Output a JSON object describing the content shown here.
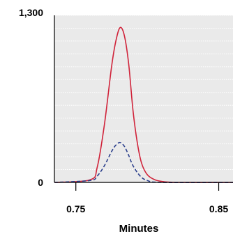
{
  "chart_data": {
    "type": "line",
    "title": "",
    "xlabel": "Minutes",
    "ylabel": "",
    "xlim": [
      0.735,
      0.86
    ],
    "ylim": [
      0,
      1300
    ],
    "x_ticks": [
      {
        "value": 0.75,
        "label": "0.75"
      },
      {
        "value": 0.85,
        "label": "0.85"
      }
    ],
    "y_ticks": [
      {
        "value": 0,
        "label": "0"
      },
      {
        "value": 1300,
        "label": "1,300"
      }
    ],
    "grid": true,
    "colors": {
      "plot_background": "#eaeaea",
      "grid": "#ffffff",
      "solid_series": "#d0233a",
      "dashed_series": "#2b3f8c",
      "axis": "#000000"
    },
    "series": [
      {
        "style": "solid",
        "x": [
          0.735,
          0.76,
          0.765,
          0.77,
          0.775,
          0.778,
          0.781,
          0.784,
          0.787,
          0.79,
          0.793,
          0.796,
          0.8,
          0.805,
          0.81,
          0.82,
          0.86
        ],
        "values": [
          0,
          20,
          120,
          450,
          900,
          1100,
          1205,
          1140,
          920,
          560,
          310,
          150,
          60,
          22,
          8,
          0,
          0
        ]
      },
      {
        "style": "dashed",
        "x": [
          0.735,
          0.76,
          0.765,
          0.77,
          0.775,
          0.778,
          0.781,
          0.784,
          0.787,
          0.79,
          0.795,
          0.8,
          0.81,
          0.86
        ],
        "values": [
          0,
          15,
          50,
          130,
          240,
          290,
          310,
          280,
          210,
          130,
          50,
          15,
          0,
          0
        ]
      }
    ]
  }
}
